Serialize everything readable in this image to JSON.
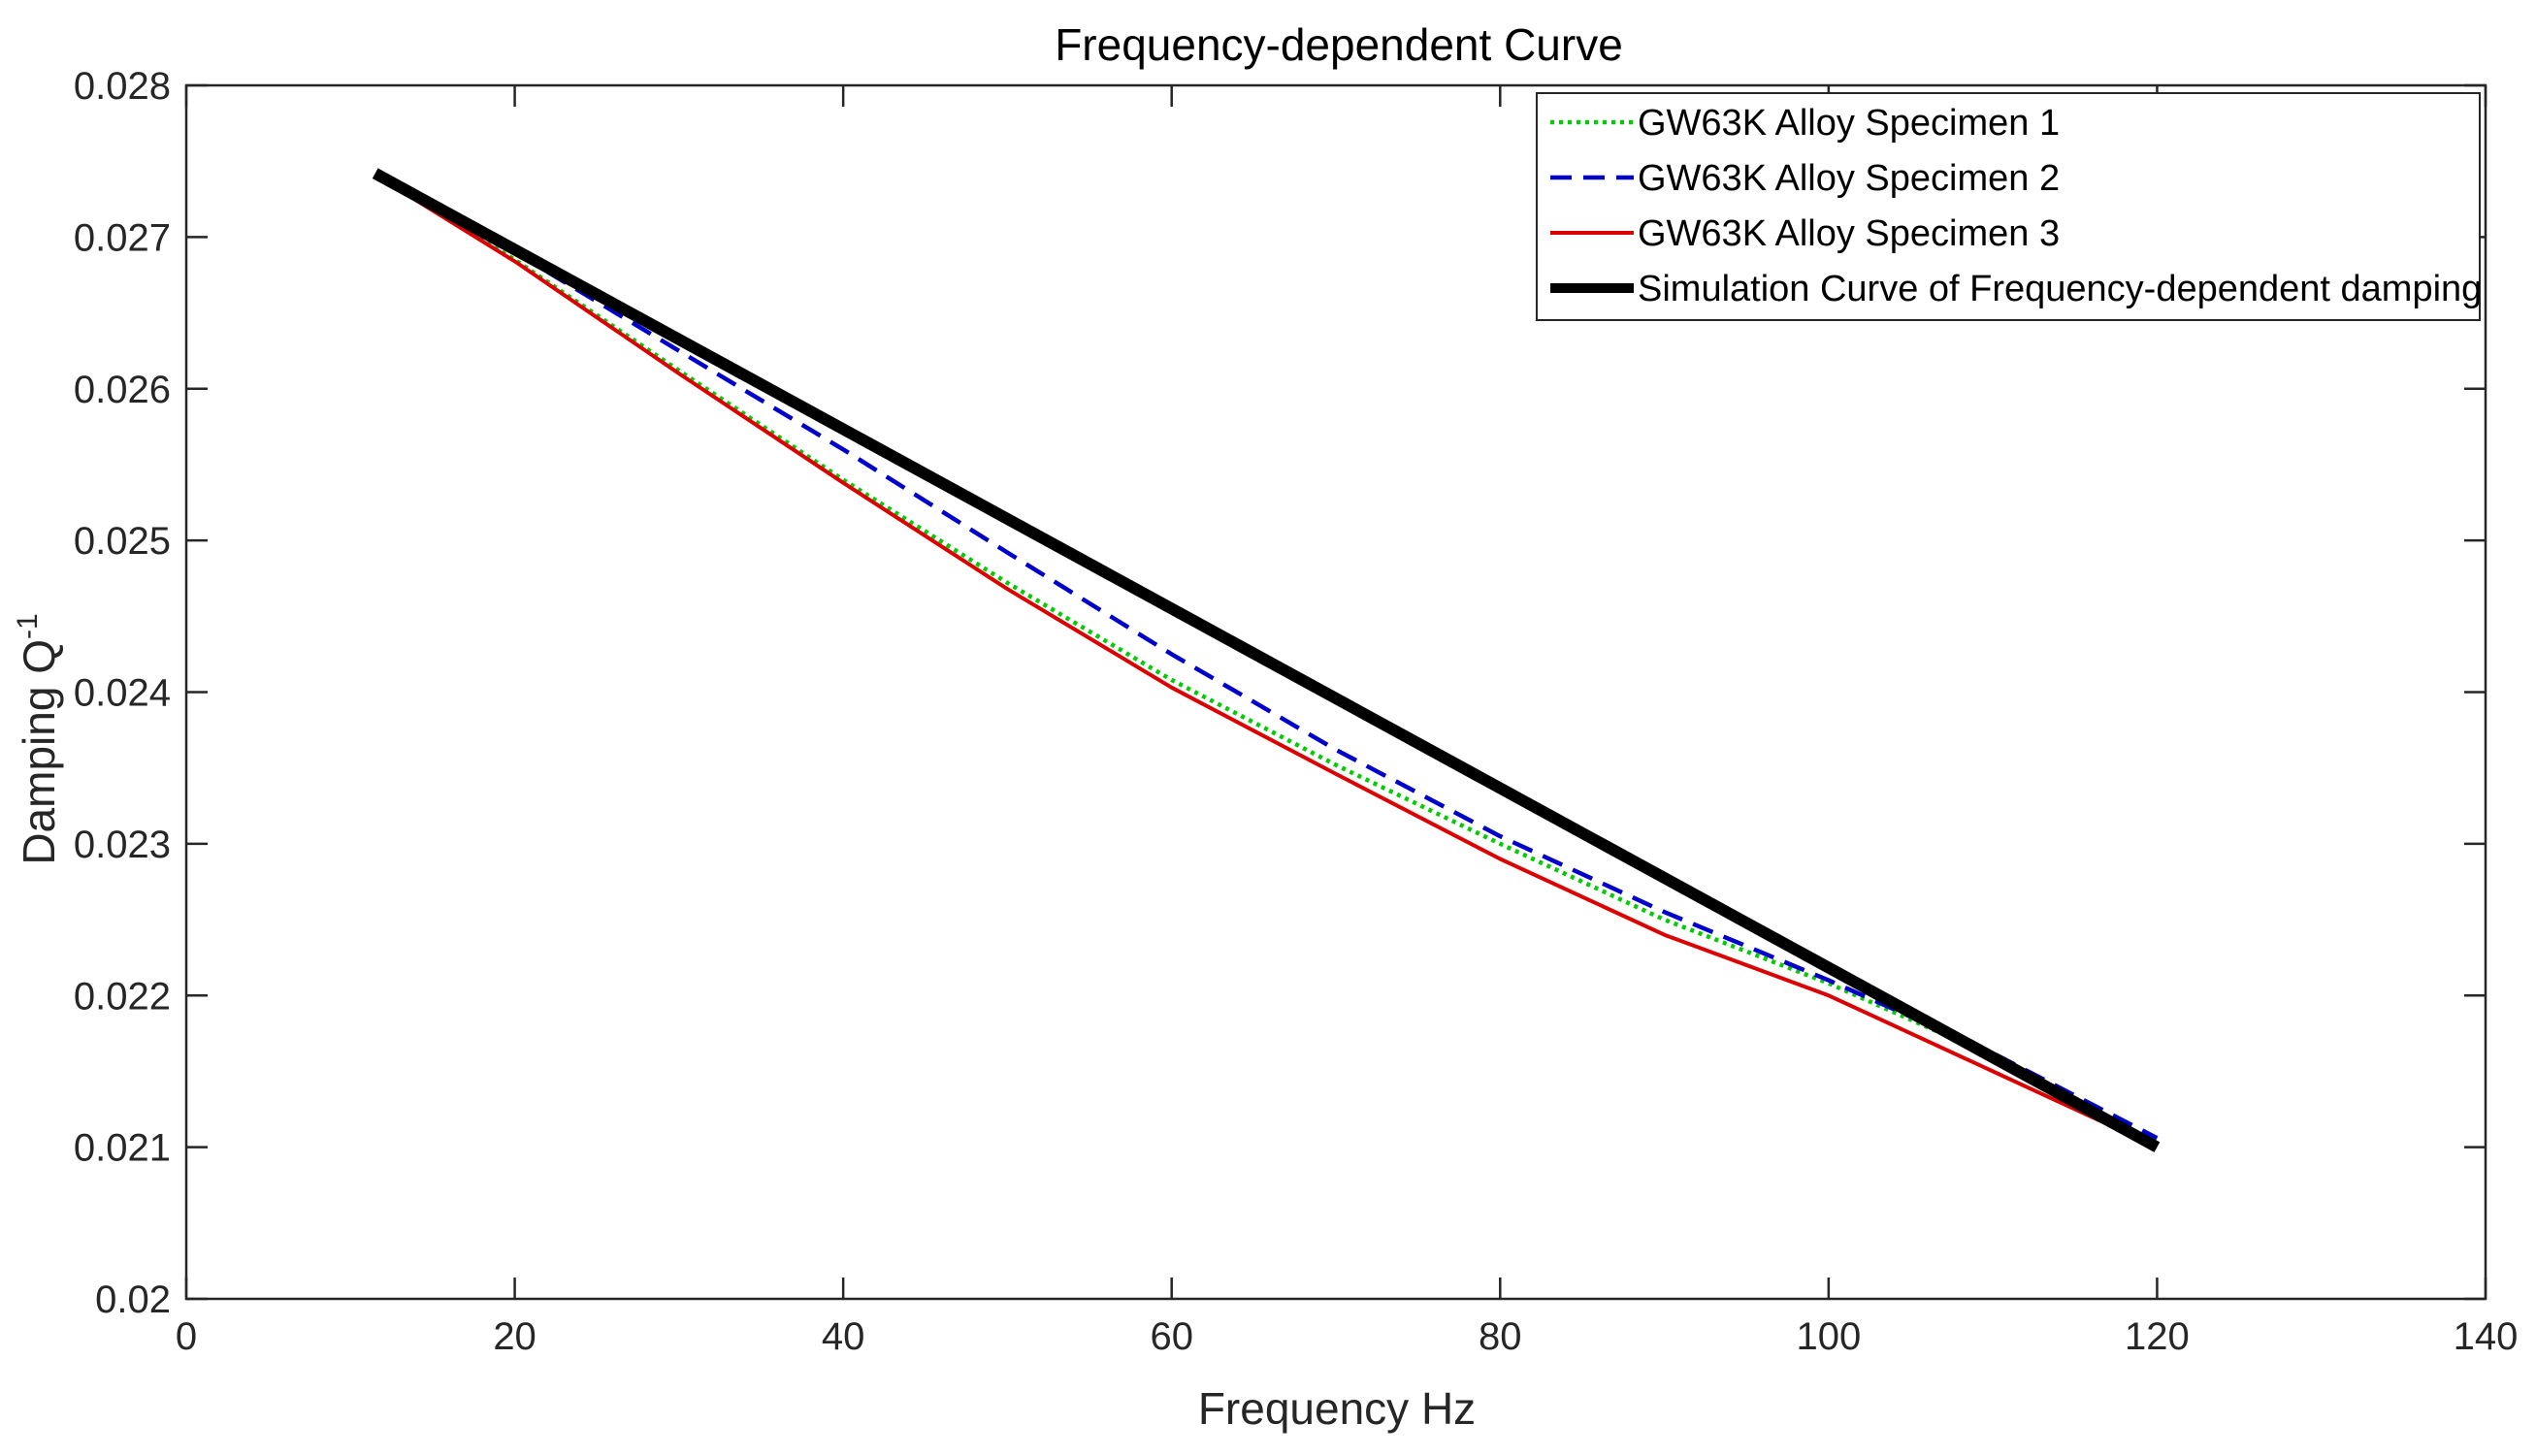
{
  "chart_data": {
    "type": "line",
    "title": "Frequency-dependent Curve",
    "xlabel": "Frequency Hz",
    "ylabel": "Damping Q",
    "ylabel_superscript": "-1",
    "xlim": [
      0,
      140
    ],
    "ylim": [
      0.02,
      0.028
    ],
    "xticks": [
      0,
      20,
      40,
      60,
      80,
      100,
      120,
      140
    ],
    "xtick_labels": [
      "0",
      "20",
      "40",
      "60",
      "80",
      "100",
      "120",
      "140"
    ],
    "yticks": [
      0.02,
      0.021,
      0.022,
      0.023,
      0.024,
      0.025,
      0.026,
      0.027,
      0.028
    ],
    "ytick_labels": [
      "0.02",
      "0.021",
      "0.022",
      "0.023",
      "0.024",
      "0.025",
      "0.026",
      "0.027",
      "0.028"
    ],
    "grid": false,
    "legend_position": "top-right",
    "series": [
      {
        "name": "GW63K Alloy Specimen 1",
        "color": "#00cc00",
        "style": "dotted",
        "x": [
          11.5,
          20,
          30,
          40,
          50,
          60,
          70,
          80,
          90,
          100,
          110,
          120
        ],
        "y": [
          0.02741,
          0.02685,
          0.02612,
          0.0254,
          0.02472,
          0.02408,
          0.02352,
          0.023,
          0.0225,
          0.02208,
          0.0216,
          0.02103
        ]
      },
      {
        "name": "GW63K Alloy Specimen 2",
        "color": "#0000cc",
        "style": "dashed",
        "x": [
          11.5,
          20,
          30,
          40,
          50,
          60,
          70,
          80,
          90,
          100,
          110,
          120
        ],
        "y": [
          0.02741,
          0.0269,
          0.02625,
          0.0256,
          0.02492,
          0.02425,
          0.02362,
          0.02305,
          0.02255,
          0.0221,
          0.02162,
          0.02106
        ]
      },
      {
        "name": "GW63K Alloy Specimen 3",
        "color": "#dd0000",
        "style": "solid",
        "x": [
          11.5,
          20,
          30,
          40,
          50,
          60,
          70,
          80,
          90,
          100,
          110,
          120
        ],
        "y": [
          0.02741,
          0.02684,
          0.0261,
          0.02538,
          0.02468,
          0.02403,
          0.02346,
          0.0229,
          0.0224,
          0.022,
          0.0215,
          0.021
        ]
      },
      {
        "name": "Simulation Curve of Frequency-dependent damping",
        "color": "#000000",
        "style": "thick",
        "x": [
          11.5,
          120
        ],
        "y": [
          0.02742,
          0.021
        ]
      }
    ]
  }
}
